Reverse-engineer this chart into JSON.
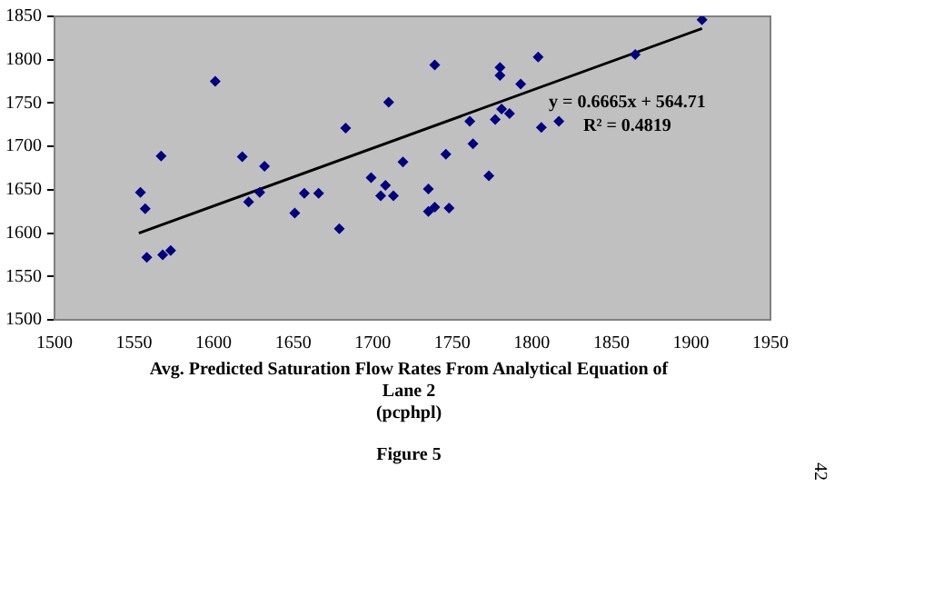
{
  "chart_data": {
    "type": "scatter",
    "xlabel": "Avg. Predicted Saturation Flow Rates From Analytical Equation of\nLane 2\n(pcphpl)",
    "xlim": [
      1500,
      1950
    ],
    "xticks": [
      1500,
      1550,
      1600,
      1650,
      1700,
      1750,
      1800,
      1850,
      1900,
      1950
    ],
    "ylim": [
      1500,
      1850
    ],
    "yticks": [
      1500,
      1550,
      1600,
      1650,
      1700,
      1750,
      1800,
      1850
    ],
    "grid": false,
    "legend": false,
    "series": [
      {
        "color": "#000080",
        "marker": "diamond",
        "x": [
          1554,
          1557,
          1558,
          1567,
          1568,
          1573,
          1601,
          1618,
          1622,
          1629,
          1632,
          1651,
          1657,
          1666,
          1679,
          1683,
          1699,
          1705,
          1708,
          1710,
          1713,
          1719,
          1735,
          1735,
          1739,
          1739,
          1748,
          1746,
          1761,
          1763,
          1773,
          1777,
          1780,
          1780,
          1781,
          1786,
          1793,
          1804,
          1806,
          1817,
          1865,
          1907
        ],
        "values": [
          1647,
          1628,
          1572,
          1689,
          1575,
          1580,
          1775,
          1688,
          1636,
          1647,
          1677,
          1623,
          1646,
          1646,
          1605,
          1721,
          1664,
          1643,
          1655,
          1751,
          1643,
          1682,
          1651,
          1625,
          1630,
          1794,
          1629,
          1691,
          1729,
          1703,
          1666,
          1731,
          1791,
          1782,
          1743,
          1738,
          1772,
          1803,
          1722,
          1729,
          1806,
          1846
        ]
      },
      {
        "type": "line",
        "color": "#000000",
        "x": [
          1553,
          1907
        ],
        "values": [
          1600,
          1836
        ]
      }
    ],
    "annotations": [
      "y = 0.6665x + 564.71",
      "R² = 0.4819",
      "Figure 5",
      "42"
    ]
  }
}
